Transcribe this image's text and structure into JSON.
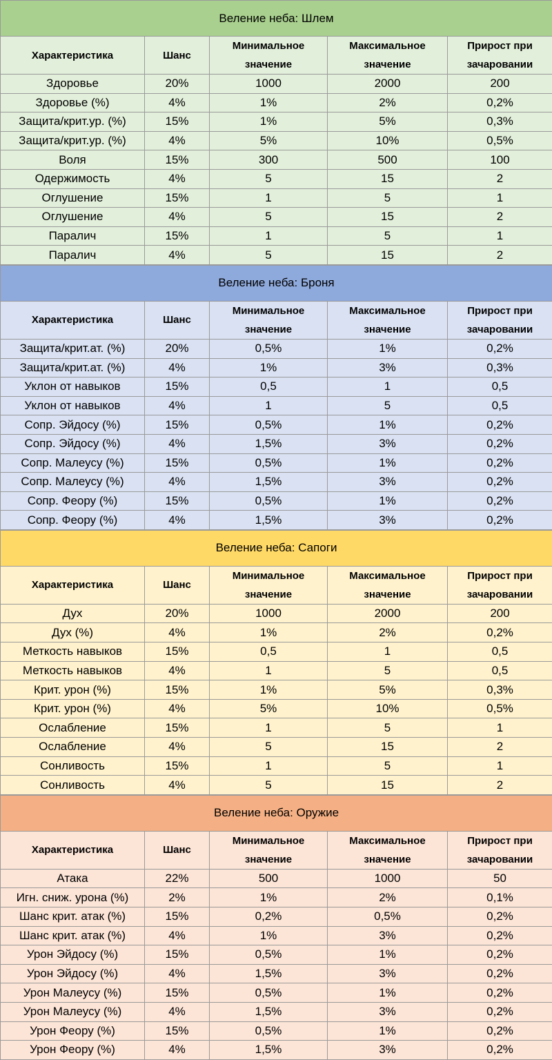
{
  "columns": [
    "Характеристика",
    "Шанс",
    "Минимальное значение",
    "Максимальное значение",
    "Прирост при зачаровании"
  ],
  "sections": [
    {
      "title": "Веление неба: Шлем",
      "colors": {
        "title": "#a9d08e",
        "header": "#e2efda",
        "row": "#e2efda"
      },
      "rows": [
        [
          "Здоровье",
          "20%",
          "1000",
          "2000",
          "200"
        ],
        [
          "Здоровье (%)",
          "4%",
          "1%",
          "2%",
          "0,2%"
        ],
        [
          "Защита/крит.ур. (%)",
          "15%",
          "1%",
          "5%",
          "0,3%"
        ],
        [
          "Защита/крит.ур. (%)",
          "4%",
          "5%",
          "10%",
          "0,5%"
        ],
        [
          "Воля",
          "15%",
          "300",
          "500",
          "100"
        ],
        [
          "Одержимость",
          "4%",
          "5",
          "15",
          "2"
        ],
        [
          "Оглушение",
          "15%",
          "1",
          "5",
          "1"
        ],
        [
          "Оглушение",
          "4%",
          "5",
          "15",
          "2"
        ],
        [
          "Паралич",
          "15%",
          "1",
          "5",
          "1"
        ],
        [
          "Паралич",
          "4%",
          "5",
          "15",
          "2"
        ]
      ]
    },
    {
      "title": "Веление неба: Броня",
      "colors": {
        "title": "#8ea9db",
        "header": "#d9e1f2",
        "row": "#d9e1f2"
      },
      "rows": [
        [
          "Защита/крит.ат. (%)",
          "20%",
          "0,5%",
          "1%",
          "0,2%"
        ],
        [
          "Защита/крит.ат. (%)",
          "4%",
          "1%",
          "3%",
          "0,3%"
        ],
        [
          "Уклон от навыков",
          "15%",
          "0,5",
          "1",
          "0,5"
        ],
        [
          "Уклон от навыков",
          "4%",
          "1",
          "5",
          "0,5"
        ],
        [
          "Сопр. Эйдосу (%)",
          "15%",
          "0,5%",
          "1%",
          "0,2%"
        ],
        [
          "Сопр. Эйдосу (%)",
          "4%",
          "1,5%",
          "3%",
          "0,2%"
        ],
        [
          "Сопр. Малеусу (%)",
          "15%",
          "0,5%",
          "1%",
          "0,2%"
        ],
        [
          "Сопр. Малеусу (%)",
          "4%",
          "1,5%",
          "3%",
          "0,2%"
        ],
        [
          "Сопр. Феору (%)",
          "15%",
          "0,5%",
          "1%",
          "0,2%"
        ],
        [
          "Сопр. Феору (%)",
          "4%",
          "1,5%",
          "3%",
          "0,2%"
        ]
      ]
    },
    {
      "title": "Веление неба: Сапоги",
      "colors": {
        "title": "#ffd966",
        "header": "#fff2cc",
        "row": "#fff2cc"
      },
      "rows": [
        [
          "Дух",
          "20%",
          "1000",
          "2000",
          "200"
        ],
        [
          "Дух (%)",
          "4%",
          "1%",
          "2%",
          "0,2%"
        ],
        [
          "Меткость навыков",
          "15%",
          "0,5",
          "1",
          "0,5"
        ],
        [
          "Меткость навыков",
          "4%",
          "1",
          "5",
          "0,5"
        ],
        [
          "Крит. урон (%)",
          "15%",
          "1%",
          "5%",
          "0,3%"
        ],
        [
          "Крит. урон (%)",
          "4%",
          "5%",
          "10%",
          "0,5%"
        ],
        [
          "Ослабление",
          "15%",
          "1",
          "5",
          "1"
        ],
        [
          "Ослабление",
          "4%",
          "5",
          "15",
          "2"
        ],
        [
          "Сонливость",
          "15%",
          "1",
          "5",
          "1"
        ],
        [
          "Сонливость",
          "4%",
          "5",
          "15",
          "2"
        ]
      ]
    },
    {
      "title": "Веление неба: Оружие",
      "colors": {
        "title": "#f4b084",
        "header": "#fce4d6",
        "row": "#fce4d6"
      },
      "rows": [
        [
          "Атака",
          "22%",
          "500",
          "1000",
          "50"
        ],
        [
          "Игн. сниж. урона (%)",
          "2%",
          "1%",
          "2%",
          "0,1%"
        ],
        [
          "Шанс крит. атак (%)",
          "15%",
          "0,2%",
          "0,5%",
          "0,2%"
        ],
        [
          "Шанс крит. атак (%)",
          "4%",
          "1%",
          "3%",
          "0,2%"
        ],
        [
          "Урон Эйдосу (%)",
          "15%",
          "0,5%",
          "1%",
          "0,2%"
        ],
        [
          "Урон Эйдосу (%)",
          "4%",
          "1,5%",
          "3%",
          "0,2%"
        ],
        [
          "Урон Малеусу (%)",
          "15%",
          "0,5%",
          "1%",
          "0,2%"
        ],
        [
          "Урон Малеусу (%)",
          "4%",
          "1,5%",
          "3%",
          "0,2%"
        ],
        [
          "Урон Феору (%)",
          "15%",
          "0,5%",
          "1%",
          "0,2%"
        ],
        [
          "Урон Феору (%)",
          "4%",
          "1,5%",
          "3%",
          "0,2%"
        ]
      ]
    }
  ]
}
